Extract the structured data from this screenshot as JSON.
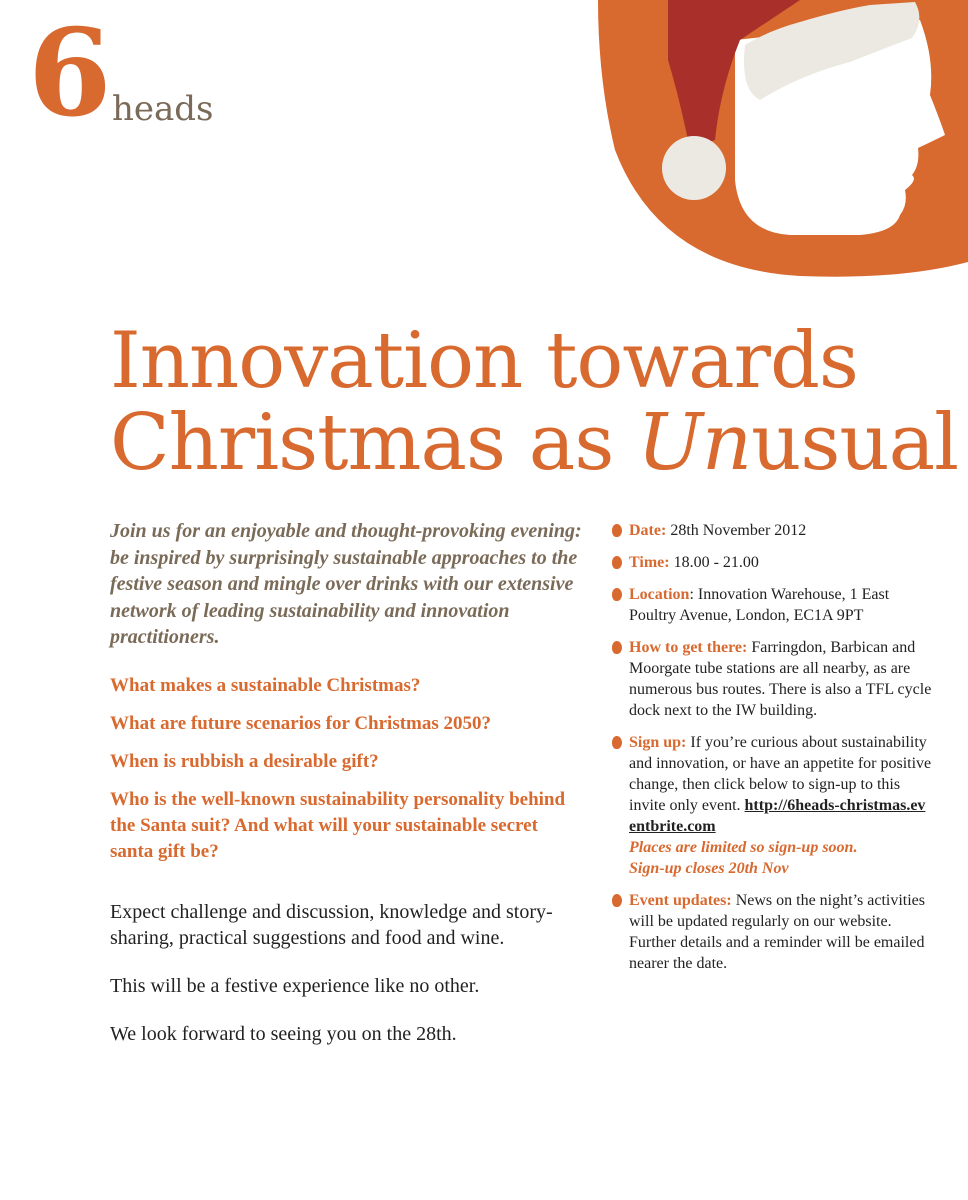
{
  "logo": {
    "number": "6",
    "word": "heads"
  },
  "colors": {
    "brand_orange": "#d8692f",
    "hat_red": "#a9302a",
    "text_brown": "#7a6a58"
  },
  "title": {
    "line1": "Innovation towards",
    "line2_prefix": "Christmas as ",
    "line2_italic": "Un",
    "line2_suffix": "usual"
  },
  "intro": "Join us for an enjoyable and thought-provoking evening: be inspired by surprisingly sustainable approaches to the festive season and mingle over drinks with our extensive network of leading sustainability and innovation practitioners.",
  "questions": [
    "What makes a sustainable Christmas?",
    "What are future scenarios for Christmas 2050?",
    "When is rubbish a desirable gift?",
    "Who is the well-known sustainability personality behind the Santa suit? And what will your sustainable secret santa gift be?"
  ],
  "body": [
    "Expect challenge and discussion, knowledge and story-sharing, practical suggestions and food and wine.",
    "This will be a festive experience like no other.",
    "We look forward to seeing you on the 28th."
  ],
  "details": {
    "date": {
      "label": "Date:",
      "text": "28th November 2012"
    },
    "time": {
      "label": "Time:",
      "text": "18.00 - 21.00"
    },
    "location": {
      "label": "Location",
      "text": ": Innovation Warehouse, 1 East Poultry Avenue, London, EC1A 9PT"
    },
    "directions": {
      "label": "How to get there:",
      "text": "Farringdon, Barbican and Moorgate tube stations are all nearby, as are numerous bus routes. There is also a TFL cycle dock next to the IW building."
    },
    "signup": {
      "label": "Sign up:",
      "text": "If you’re curious about sustainability and innovation, or have an appetite for positive change, then click below to sign-up to this invite only event.",
      "link": "http://6heads-christmas.eventbrite.com",
      "note1": "Places are limited so sign-up soon.",
      "note2": "Sign-up closes 20th Nov"
    },
    "updates": {
      "label": "Event updates:",
      "text": "News on the night’s activities will be updated regularly on our website. Further details and a reminder will be emailed nearer the date."
    }
  }
}
